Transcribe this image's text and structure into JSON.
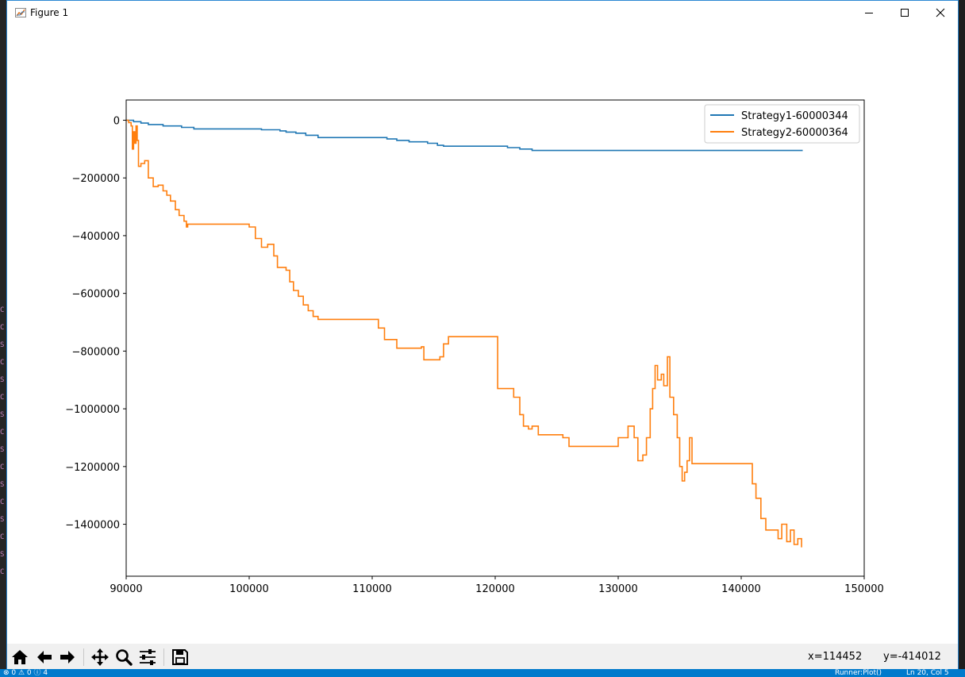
{
  "window": {
    "title": "Figure 1",
    "controls": {
      "minimize": "minimize-icon",
      "maximize": "maximize-icon",
      "close": "close-icon"
    }
  },
  "toolbar": {
    "buttons": [
      {
        "name": "home-button",
        "icon": "home-icon"
      },
      {
        "name": "back-button",
        "icon": "arrow-left-icon"
      },
      {
        "name": "forward-button",
        "icon": "arrow-right-icon"
      },
      {
        "name": "pan-button",
        "icon": "move-icon"
      },
      {
        "name": "zoom-button",
        "icon": "magnifier-icon"
      },
      {
        "name": "configure-subplots-button",
        "icon": "sliders-icon"
      },
      {
        "name": "save-button",
        "icon": "floppy-disk-icon"
      }
    ],
    "x_readout": "x=114452",
    "y_readout": "y=-414012"
  },
  "background": {
    "status_left": "⊗ 0 ⚠ 0 ⓘ 4",
    "status_runner": "Runner:Plot()",
    "status_position": "Ln 20, Col 5"
  },
  "colors": {
    "series1": "#1f77b4",
    "series2": "#ff7f0e",
    "window_border": "#2b87d3",
    "toolbar_bg": "#f0f0f0"
  },
  "chart_data": {
    "type": "line",
    "title": "",
    "xlabel": "",
    "ylabel": "",
    "xlim": [
      90000,
      150000
    ],
    "ylim": [
      -1580000,
      70000
    ],
    "xticks": [
      90000,
      100000,
      110000,
      120000,
      130000,
      140000,
      150000
    ],
    "xtick_labels": [
      "90000",
      "100000",
      "110000",
      "120000",
      "130000",
      "140000",
      "150000"
    ],
    "yticks": [
      0,
      -200000,
      -400000,
      -600000,
      -800000,
      -1000000,
      -1200000,
      -1400000
    ],
    "ytick_labels": [
      "0",
      "−200000",
      "−400000",
      "−600000",
      "−800000",
      "−1000000",
      "−1200000",
      "−1400000"
    ],
    "legend_position": "top-right",
    "grid": false,
    "series": [
      {
        "name": "Strategy1-60000344",
        "color": "#1f77b4",
        "step": true,
        "x": [
          90000,
          90600,
          91200,
          91800,
          93000,
          94500,
          95500,
          100000,
          101000,
          102500,
          103000,
          103800,
          104600,
          105600,
          110200,
          111200,
          112000,
          113000,
          114500,
          115300,
          115800,
          120200,
          121000,
          122000,
          123000,
          145000
        ],
        "y": [
          0,
          -5000,
          -10000,
          -15000,
          -20000,
          -25000,
          -30000,
          -30000,
          -33000,
          -37000,
          -41000,
          -45000,
          -52000,
          -60000,
          -60000,
          -65000,
          -70000,
          -75000,
          -80000,
          -87000,
          -90000,
          -90000,
          -95000,
          -100000,
          -105000,
          -105000
        ]
      },
      {
        "name": "Strategy2-60000364",
        "color": "#ff7f0e",
        "step": true,
        "x": [
          90000,
          90200,
          90400,
          90500,
          90600,
          90700,
          90800,
          90900,
          91000,
          91200,
          91500,
          91800,
          92200,
          92600,
          93000,
          93300,
          93600,
          94000,
          94300,
          94700,
          94900,
          95000,
          100000,
          100500,
          101000,
          101500,
          102000,
          102300,
          103000,
          103300,
          103600,
          104000,
          104400,
          104800,
          105200,
          105600,
          110000,
          110500,
          111000,
          112000,
          113000,
          114000,
          114200,
          115500,
          115800,
          116200,
          118000,
          120000,
          120200,
          120500,
          121000,
          121500,
          122000,
          122300,
          122700,
          123000,
          123500,
          124000,
          125500,
          126000,
          128000,
          129000,
          130000,
          130300,
          130800,
          131300,
          131600,
          132000,
          132300,
          132600,
          132800,
          133000,
          133200,
          133500,
          133700,
          134000,
          134200,
          134500,
          134800,
          135000,
          135200,
          135400,
          135600,
          135800,
          136000,
          138000,
          140600,
          140900,
          141200,
          141600,
          142000,
          143000,
          143300,
          143700,
          144000,
          144300,
          144600,
          144900
        ],
        "y": [
          0,
          -8000,
          -20000,
          -100000,
          -40000,
          -80000,
          -20000,
          -70000,
          -160000,
          -150000,
          -140000,
          -200000,
          -230000,
          -225000,
          -245000,
          -260000,
          -280000,
          -310000,
          -330000,
          -350000,
          -370000,
          -360000,
          -370000,
          -410000,
          -440000,
          -430000,
          -470000,
          -510000,
          -520000,
          -560000,
          -590000,
          -610000,
          -640000,
          -660000,
          -680000,
          -690000,
          -690000,
          -720000,
          -760000,
          -790000,
          -790000,
          -785000,
          -830000,
          -820000,
          -775000,
          -750000,
          -750000,
          -750000,
          -930000,
          -930000,
          -930000,
          -960000,
          -1020000,
          -1060000,
          -1070000,
          -1060000,
          -1090000,
          -1090000,
          -1100000,
          -1130000,
          -1130000,
          -1130000,
          -1100000,
          -1100000,
          -1060000,
          -1100000,
          -1180000,
          -1160000,
          -1100000,
          -1000000,
          -930000,
          -850000,
          -900000,
          -880000,
          -920000,
          -820000,
          -960000,
          -1020000,
          -1100000,
          -1200000,
          -1250000,
          -1220000,
          -1180000,
          -1100000,
          -1190000,
          -1190000,
          -1190000,
          -1260000,
          -1310000,
          -1380000,
          -1420000,
          -1450000,
          -1400000,
          -1460000,
          -1420000,
          -1470000,
          -1450000,
          -1480000
        ]
      }
    ]
  }
}
